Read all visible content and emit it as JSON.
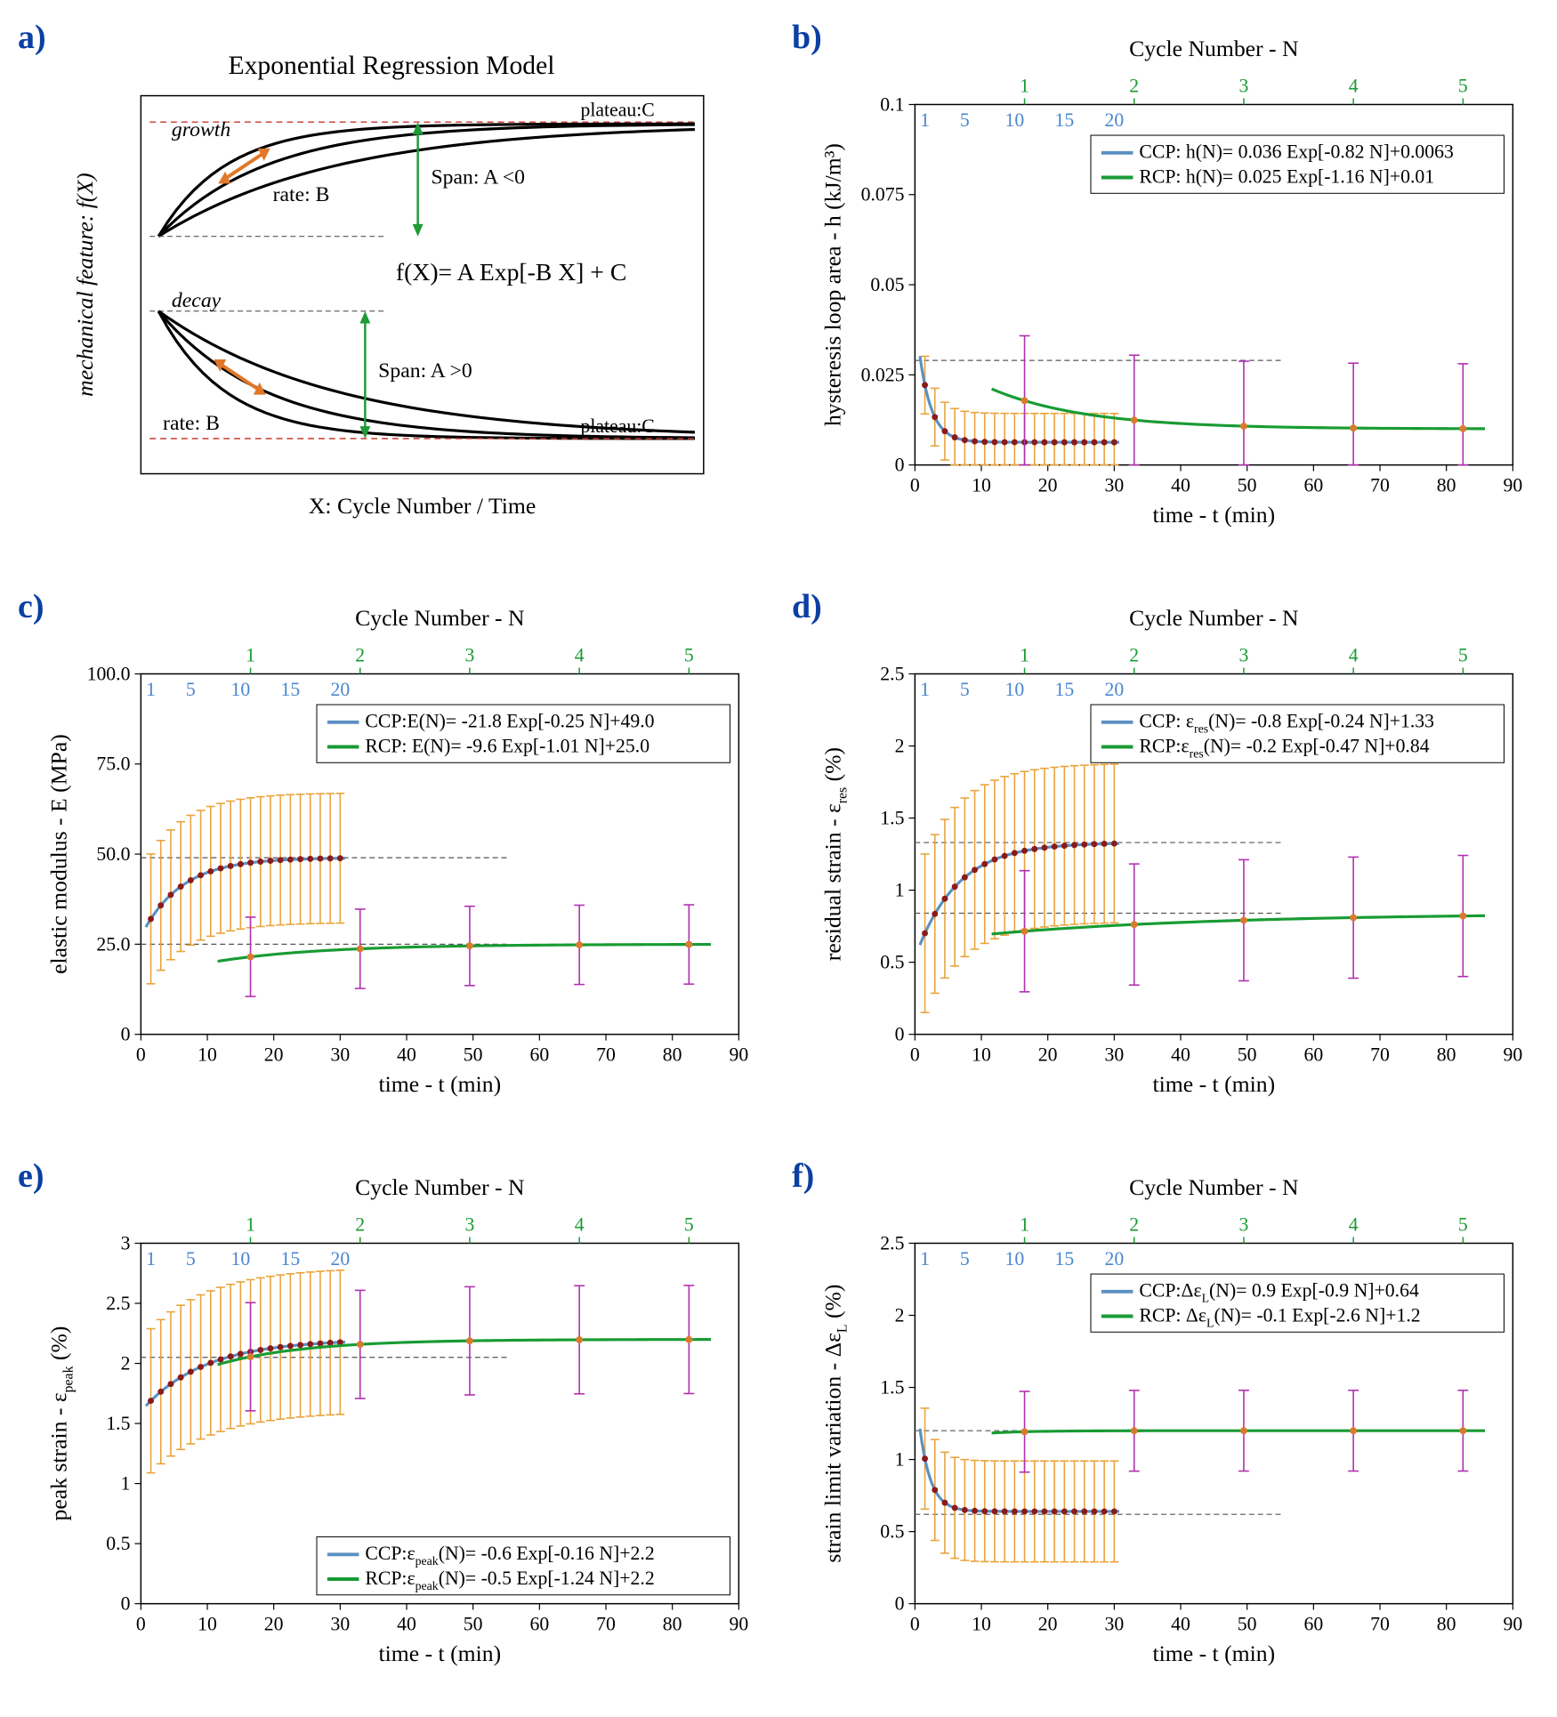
{
  "colors": {
    "ccp": "#5a90c2",
    "rcp": "#189b33",
    "ccp_err": "#e8a33c",
    "rcp_err": "#b02fb0",
    "marker": "#8b1a1a",
    "dash": "#555555",
    "panel_label": "#0b3fa3",
    "top_axis": "#189b33",
    "inner_ticks": "#4a86d0",
    "model_growth_plateau": "#c8382e",
    "model_span_arrow": "#1d9b36",
    "model_rate_arrow": "#e07828"
  },
  "panel_labels": {
    "a": "a)",
    "b": "b)",
    "c": "c)",
    "d": "d)",
    "e": "e)",
    "f": "f)"
  },
  "panel_a": {
    "title": "Exponential Regression Model",
    "ylabel": "mechanical feature: f(X)",
    "xlabel": "X: Cycle Number / Time",
    "growth_label": "growth",
    "decay_label": "decay",
    "plateau_label": "plateau:C",
    "span_neg": "Span: A <0",
    "span_pos": "Span: A >0",
    "rate": "rate: B",
    "formula": "f(X)= A Exp[-B X] + C"
  },
  "top_axis": {
    "title": "Cycle Number - N",
    "ticks": [
      1,
      2,
      3,
      4,
      5
    ],
    "tick_positions": [
      16.5,
      33,
      49.5,
      66,
      82.5
    ]
  },
  "inner_axis": {
    "ticks": [
      1,
      5,
      10,
      15,
      20
    ],
    "tick_positions": [
      1.5,
      7.5,
      15,
      22.5,
      30
    ]
  },
  "x_axis": {
    "title": "time - t (min)",
    "min": 0,
    "max": 90,
    "step": 10
  },
  "ccp_x": [
    1.5,
    3,
    4.5,
    6,
    7.5,
    9,
    10.5,
    12,
    13.5,
    15,
    16.5,
    18,
    19.5,
    21,
    22.5,
    24,
    25.5,
    27,
    28.5,
    30
  ],
  "rcp_x": [
    16.5,
    33,
    49.5,
    66,
    82.5
  ],
  "panels": {
    "b": {
      "ylabel": "hysteresis loop area - h (kJ/m³)",
      "ylim": [
        0,
        0.1
      ],
      "ystep": 0.025,
      "yfmt": 3,
      "ccp_leg": "CCP:  h(N)= 0.036 Exp[-0.82 N]+0.0063",
      "rcp_leg": "RCP:  h(N)= 0.025 Exp[-1.16 N]+0.01",
      "ccp": {
        "A": 0.036,
        "B": 0.82,
        "C": 0.0063,
        "err": 0.008
      },
      "rcp": {
        "A": 0.025,
        "B": 1.16,
        "C": 0.01,
        "err": 0.018
      },
      "legend_pos": "top",
      "dashes": [
        0.029
      ]
    },
    "c": {
      "ylabel": "elastic modulus - E (MPa)",
      "ylim": [
        0,
        100
      ],
      "ystep": 25,
      "yfmt": 1,
      "ccp_leg": "CCP:E(N)= -21.8 Exp[-0.25 N]+49.0",
      "rcp_leg": "RCP:  E(N)= -9.6 Exp[-1.01 N]+25.0",
      "ccp": {
        "A": -21.8,
        "B": 0.25,
        "C": 49.0,
        "err": 18
      },
      "rcp": {
        "A": -9.6,
        "B": 1.01,
        "C": 25.0,
        "err": 11
      },
      "legend_pos": "top",
      "dashes": [
        49,
        25
      ]
    },
    "d": {
      "ylabel": "residual strain - ε_res (%)",
      "ylabel_html": "residual strain - ε<tspan font-size='15' baseline-shift='-6'>res</tspan> (%)",
      "ylim": [
        0,
        2.5
      ],
      "ystep": 0.5,
      "yfmt": 1,
      "ccp_leg": "CCP: ε_res(N)= -0.8 Exp[-0.24 N]+1.33",
      "rcp_leg": "RCP:ε_res(N)= -0.2 Exp[-0.47 N]+0.84",
      "ccp": {
        "A": -0.8,
        "B": 0.24,
        "C": 1.33,
        "err": 0.55
      },
      "rcp": {
        "A": -0.2,
        "B": 0.47,
        "C": 0.84,
        "err": 0.42
      },
      "legend_pos": "top",
      "dashes": [
        1.33,
        0.84
      ]
    },
    "e": {
      "ylabel": "peak strain  - ε_peak (%)",
      "ylim": [
        0,
        3
      ],
      "ystep": 0.5,
      "yfmt": 1,
      "ccp_leg": "CCP:ε_peak(N)= -0.6 Exp[-0.16 N]+2.2",
      "rcp_leg": "RCP:ε_peak(N)= -0.5 Exp[-1.24 N]+2.2",
      "ccp": {
        "A": -0.6,
        "B": 0.16,
        "C": 2.2,
        "err": 0.6
      },
      "rcp": {
        "A": -0.5,
        "B": 1.24,
        "C": 2.2,
        "err": 0.45
      },
      "legend_pos": "bottom",
      "dashes": [
        2.05
      ]
    },
    "f": {
      "ylabel": "strain limit variation - Δε_L (%)",
      "ylim": [
        0,
        2.5
      ],
      "ystep": 0.5,
      "yfmt": 1,
      "ccp_leg": "CCP:Δε_L(N)= 0.9 Exp[-0.9 N]+0.64",
      "rcp_leg": "RCP: Δε_L(N)= -0.1 Exp[-2.6 N]+1.2",
      "ccp": {
        "A": 0.9,
        "B": 0.9,
        "C": 0.64,
        "err": 0.35
      },
      "rcp": {
        "A": -0.1,
        "B": 2.6,
        "C": 1.2,
        "err": 0.28
      },
      "legend_pos": "top",
      "dashes": [
        1.2,
        0.62
      ]
    }
  }
}
